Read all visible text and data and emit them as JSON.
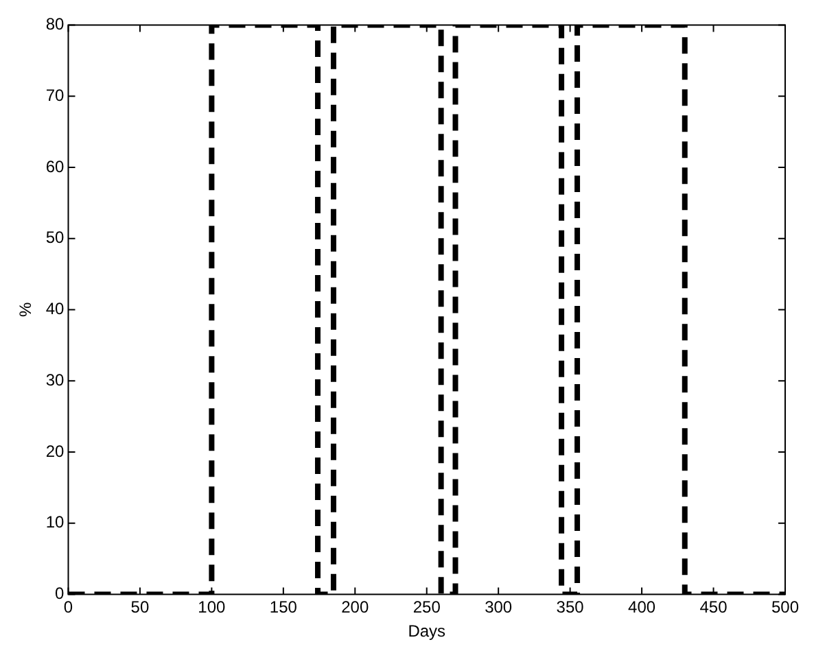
{
  "chart_data": {
    "type": "line",
    "xlabel": "Days",
    "ylabel": "%",
    "x": [
      0,
      100,
      100,
      174,
      174,
      185,
      185,
      260,
      260,
      270,
      270,
      344,
      344,
      355,
      355,
      430,
      430,
      500
    ],
    "series": [
      {
        "color": "#000000",
        "values": [
          0,
          0,
          80,
          80,
          0,
          0,
          80,
          80,
          0,
          0,
          80,
          80,
          0,
          0,
          80,
          80,
          0,
          0
        ]
      }
    ],
    "xlim": [
      0,
      500
    ],
    "xticks": [
      0,
      50,
      100,
      150,
      200,
      250,
      300,
      350,
      400,
      450,
      500
    ],
    "ylim": [
      0,
      80
    ],
    "yticks": [
      0,
      10,
      20,
      30,
      40,
      50,
      60,
      70,
      80
    ],
    "marker": "none",
    "line_style": "dashed",
    "legend": false
  }
}
